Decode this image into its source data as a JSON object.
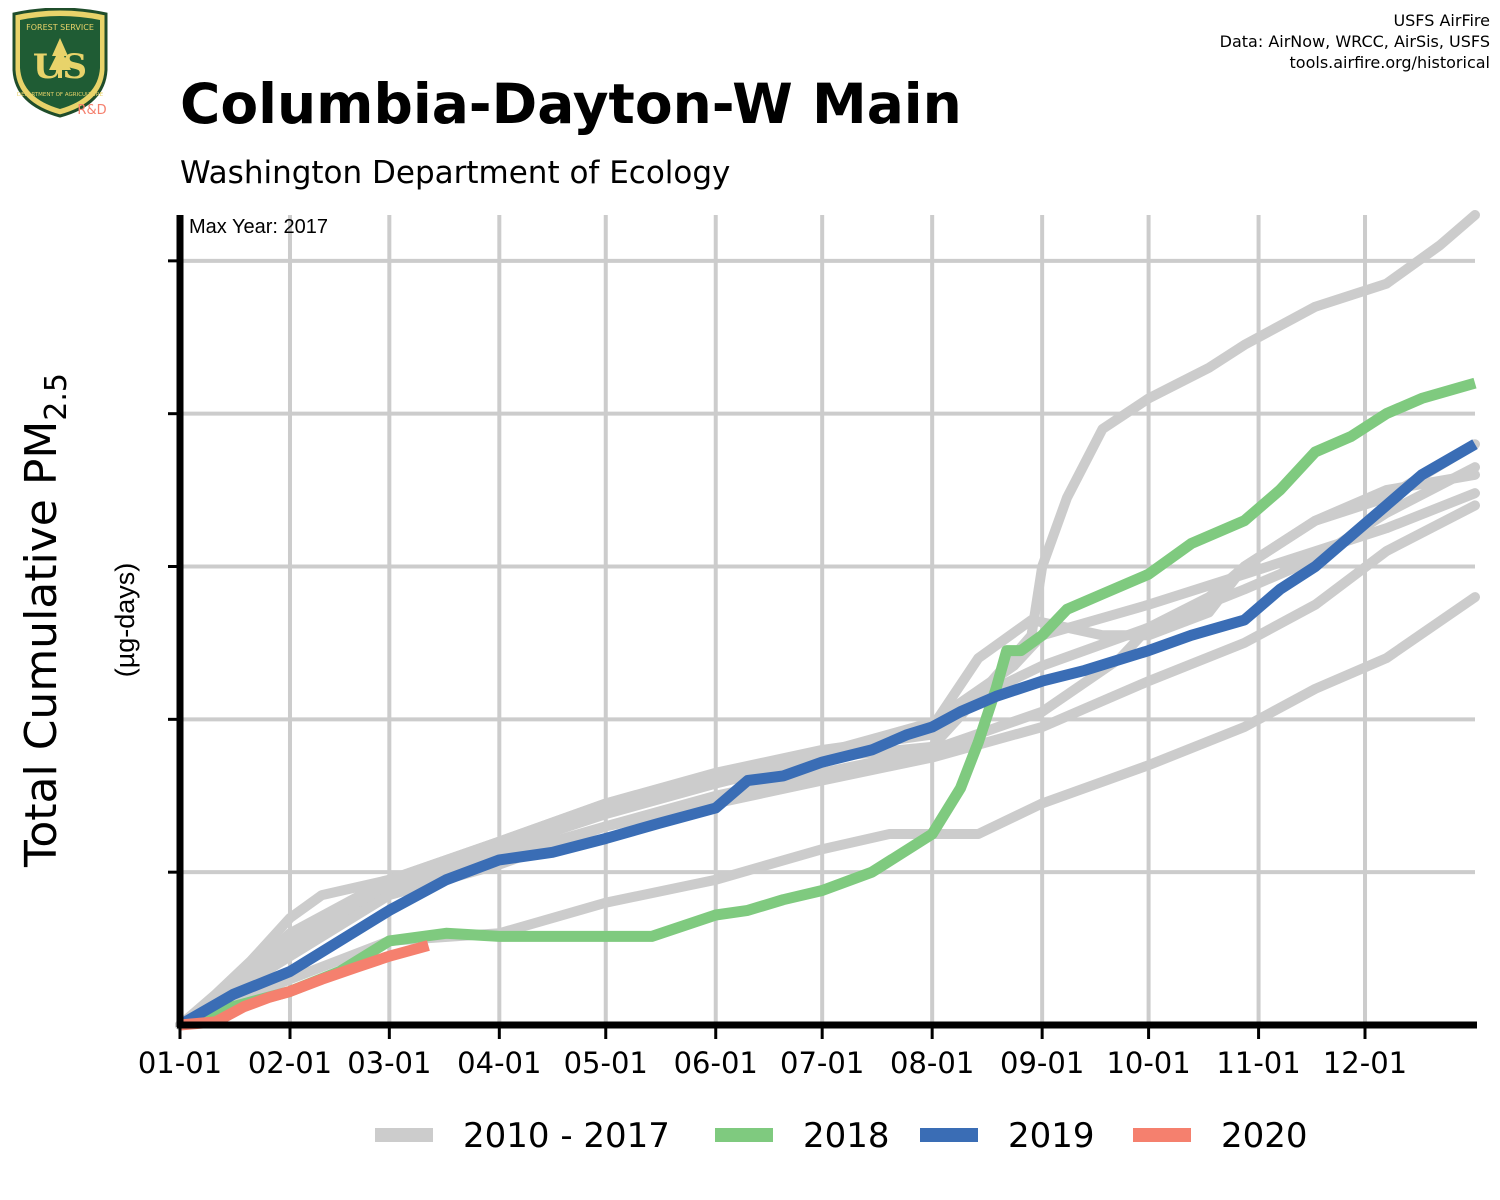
{
  "header": {
    "title": "Columbia-Dayton-W Main",
    "subtitle": "Washington Department of Ecology",
    "credits": [
      "USFS AirFire",
      "Data: AirNow, WRCC, AirSis, USFS",
      "tools.airfire.org/historical"
    ]
  },
  "logo": {
    "text_top": "FOREST SERVICE",
    "text_main": "US",
    "text_bottom": "DEPARTMENT OF AGRICULTURE",
    "badge": "R&D"
  },
  "colors": {
    "historical": "#cccccc",
    "y2018": "#7fca7f",
    "y2019": "#3a6db5",
    "y2020": "#f5806e",
    "grid": "#cccccc",
    "axis": "#000000"
  },
  "chart_data": {
    "type": "line",
    "annotation": "Max Year: 2017",
    "ylabel_main": "Total Cumulative PM",
    "ylabel_sub": "2.5",
    "ylabel_units": "(µg-days)",
    "x_ticks": [
      "01-01",
      "02-01",
      "03-01",
      "04-01",
      "05-01",
      "06-01",
      "07-01",
      "08-01",
      "09-01",
      "10-01",
      "11-01",
      "12-01"
    ],
    "x_tick_days": [
      0,
      31,
      59,
      90,
      120,
      151,
      181,
      212,
      243,
      273,
      304,
      334
    ],
    "xlim": [
      0,
      365
    ],
    "ylim": [
      0,
      5.3
    ],
    "y_grid": [
      1,
      2,
      3,
      4,
      5
    ],
    "y_tick_labels_shown": false,
    "legend": [
      {
        "label": "2010 - 2017",
        "color_key": "historical"
      },
      {
        "label": "2018",
        "color_key": "y2018"
      },
      {
        "label": "2019",
        "color_key": "y2019"
      },
      {
        "label": "2020",
        "color_key": "y2020"
      }
    ],
    "historical_series": [
      [
        [
          0,
          0
        ],
        [
          10,
          0.2
        ],
        [
          20,
          0.42
        ],
        [
          31,
          0.7
        ],
        [
          40,
          0.85
        ],
        [
          59,
          0.95
        ],
        [
          90,
          1.15
        ],
        [
          120,
          1.4
        ],
        [
          151,
          1.6
        ],
        [
          181,
          1.75
        ],
        [
          212,
          1.82
        ],
        [
          225,
          2.15
        ],
        [
          240,
          2.55
        ],
        [
          243,
          3.0
        ],
        [
          250,
          3.45
        ],
        [
          260,
          3.9
        ],
        [
          273,
          4.1
        ],
        [
          290,
          4.3
        ],
        [
          300,
          4.45
        ],
        [
          320,
          4.7
        ],
        [
          340,
          4.85
        ],
        [
          355,
          5.1
        ],
        [
          365,
          5.3
        ]
      ],
      [
        [
          0,
          0
        ],
        [
          15,
          0.25
        ],
        [
          31,
          0.6
        ],
        [
          59,
          0.95
        ],
        [
          90,
          1.2
        ],
        [
          120,
          1.45
        ],
        [
          151,
          1.65
        ],
        [
          181,
          1.8
        ],
        [
          212,
          1.9
        ],
        [
          225,
          2.15
        ],
        [
          243,
          2.35
        ],
        [
          273,
          2.6
        ],
        [
          300,
          2.85
        ],
        [
          320,
          3.05
        ],
        [
          340,
          3.35
        ],
        [
          365,
          3.65
        ]
      ],
      [
        [
          0,
          0
        ],
        [
          31,
          0.5
        ],
        [
          59,
          0.92
        ],
        [
          90,
          1.15
        ],
        [
          120,
          1.38
        ],
        [
          151,
          1.58
        ],
        [
          181,
          1.75
        ],
        [
          212,
          1.95
        ],
        [
          225,
          2.4
        ],
        [
          240,
          2.65
        ],
        [
          260,
          2.55
        ],
        [
          273,
          2.55
        ],
        [
          290,
          2.7
        ],
        [
          300,
          3.0
        ],
        [
          320,
          3.3
        ],
        [
          340,
          3.45
        ],
        [
          365,
          3.8
        ]
      ],
      [
        [
          0,
          0
        ],
        [
          31,
          0.55
        ],
        [
          59,
          0.9
        ],
        [
          90,
          1.1
        ],
        [
          120,
          1.3
        ],
        [
          151,
          1.5
        ],
        [
          181,
          1.65
        ],
        [
          212,
          1.8
        ],
        [
          243,
          2.05
        ],
        [
          265,
          2.4
        ],
        [
          273,
          2.6
        ],
        [
          290,
          2.8
        ],
        [
          300,
          3.0
        ],
        [
          320,
          3.3
        ],
        [
          340,
          3.5
        ],
        [
          365,
          3.6
        ]
      ],
      [
        [
          0,
          0
        ],
        [
          31,
          0.3
        ],
        [
          59,
          0.55
        ],
        [
          90,
          0.6
        ],
        [
          120,
          0.8
        ],
        [
          151,
          0.95
        ],
        [
          181,
          1.15
        ],
        [
          200,
          1.25
        ],
        [
          212,
          1.25
        ],
        [
          225,
          1.25
        ],
        [
          243,
          1.45
        ],
        [
          273,
          1.7
        ],
        [
          300,
          1.95
        ],
        [
          320,
          2.2
        ],
        [
          340,
          2.4
        ],
        [
          365,
          2.8
        ]
      ],
      [
        [
          0,
          0
        ],
        [
          31,
          0.45
        ],
        [
          59,
          0.85
        ],
        [
          90,
          1.05
        ],
        [
          120,
          1.3
        ],
        [
          151,
          1.45
        ],
        [
          181,
          1.6
        ],
        [
          212,
          1.75
        ],
        [
          243,
          1.95
        ],
        [
          273,
          2.25
        ],
        [
          300,
          2.5
        ],
        [
          320,
          2.75
        ],
        [
          340,
          3.1
        ],
        [
          365,
          3.4
        ]
      ],
      [
        [
          0,
          0
        ],
        [
          31,
          0.5
        ],
        [
          59,
          0.95
        ],
        [
          90,
          1.2
        ],
        [
          120,
          1.45
        ],
        [
          151,
          1.62
        ],
        [
          181,
          1.78
        ],
        [
          212,
          1.98
        ],
        [
          235,
          2.35
        ],
        [
          243,
          2.55
        ],
        [
          273,
          2.75
        ],
        [
          300,
          2.95
        ],
        [
          320,
          3.1
        ],
        [
          340,
          3.25
        ],
        [
          365,
          3.48
        ]
      ]
    ],
    "series": [
      {
        "name": "2018",
        "color_key": "y2018",
        "points": [
          [
            0,
            0
          ],
          [
            15,
            0.12
          ],
          [
            31,
            0.22
          ],
          [
            45,
            0.35
          ],
          [
            59,
            0.55
          ],
          [
            75,
            0.6
          ],
          [
            90,
            0.58
          ],
          [
            105,
            0.58
          ],
          [
            120,
            0.58
          ],
          [
            133,
            0.58
          ],
          [
            151,
            0.72
          ],
          [
            160,
            0.75
          ],
          [
            170,
            0.82
          ],
          [
            181,
            0.88
          ],
          [
            195,
            1.0
          ],
          [
            212,
            1.25
          ],
          [
            220,
            1.55
          ],
          [
            225,
            1.85
          ],
          [
            230,
            2.2
          ],
          [
            233,
            2.45
          ],
          [
            237,
            2.45
          ],
          [
            243,
            2.55
          ],
          [
            250,
            2.72
          ],
          [
            260,
            2.82
          ],
          [
            273,
            2.95
          ],
          [
            285,
            3.15
          ],
          [
            300,
            3.3
          ],
          [
            310,
            3.5
          ],
          [
            320,
            3.75
          ],
          [
            330,
            3.85
          ],
          [
            340,
            4.0
          ],
          [
            350,
            4.1
          ],
          [
            365,
            4.2
          ]
        ]
      },
      {
        "name": "2019",
        "color_key": "y2019",
        "points": [
          [
            0,
            0
          ],
          [
            15,
            0.2
          ],
          [
            31,
            0.35
          ],
          [
            45,
            0.55
          ],
          [
            59,
            0.75
          ],
          [
            75,
            0.95
          ],
          [
            90,
            1.08
          ],
          [
            105,
            1.13
          ],
          [
            120,
            1.22
          ],
          [
            135,
            1.32
          ],
          [
            151,
            1.42
          ],
          [
            160,
            1.6
          ],
          [
            170,
            1.63
          ],
          [
            181,
            1.72
          ],
          [
            195,
            1.8
          ],
          [
            205,
            1.9
          ],
          [
            212,
            1.95
          ],
          [
            220,
            2.05
          ],
          [
            230,
            2.15
          ],
          [
            243,
            2.25
          ],
          [
            255,
            2.32
          ],
          [
            273,
            2.45
          ],
          [
            285,
            2.55
          ],
          [
            300,
            2.65
          ],
          [
            310,
            2.85
          ],
          [
            320,
            3.0
          ],
          [
            330,
            3.2
          ],
          [
            340,
            3.4
          ],
          [
            350,
            3.6
          ],
          [
            365,
            3.8
          ]
        ]
      },
      {
        "name": "2020",
        "color_key": "y2020",
        "points": [
          [
            0,
            0
          ],
          [
            10,
            0.02
          ],
          [
            18,
            0.12
          ],
          [
            25,
            0.18
          ],
          [
            31,
            0.22
          ],
          [
            40,
            0.3
          ],
          [
            50,
            0.38
          ],
          [
            59,
            0.45
          ],
          [
            70,
            0.52
          ]
        ]
      }
    ]
  }
}
